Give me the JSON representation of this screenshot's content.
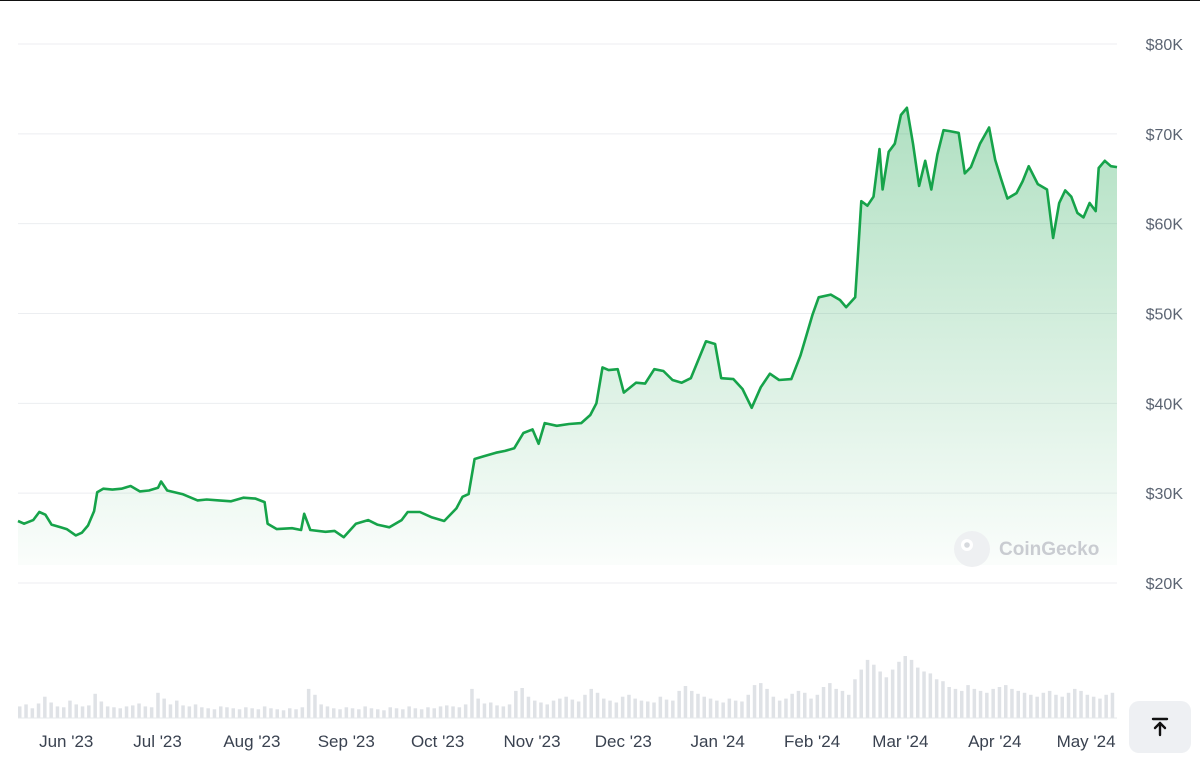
{
  "chart_data": {
    "type": "area",
    "title": "",
    "xlabel": "",
    "ylabel": "",
    "ylim": [
      20000,
      80000
    ],
    "y_ticks": [
      {
        "value": 80000,
        "label": "$80K"
      },
      {
        "value": 70000,
        "label": "$70K"
      },
      {
        "value": 60000,
        "label": "$60K"
      },
      {
        "value": 50000,
        "label": "$50K"
      },
      {
        "value": 40000,
        "label": "$40K"
      },
      {
        "value": 30000,
        "label": "$30K"
      },
      {
        "value": 20000,
        "label": "$20K"
      }
    ],
    "x_ticks": [
      {
        "date": "2023-06-01",
        "label": "Jun '23"
      },
      {
        "date": "2023-07-01",
        "label": "Jul '23"
      },
      {
        "date": "2023-08-01",
        "label": "Aug '23"
      },
      {
        "date": "2023-09-01",
        "label": "Sep '23"
      },
      {
        "date": "2023-10-01",
        "label": "Oct '23"
      },
      {
        "date": "2023-11-01",
        "label": "Nov '23"
      },
      {
        "date": "2023-12-01",
        "label": "Dec '23"
      },
      {
        "date": "2024-01-01",
        "label": "Jan '24"
      },
      {
        "date": "2024-02-01",
        "label": "Feb '24"
      },
      {
        "date": "2024-03-01",
        "label": "Mar '24"
      },
      {
        "date": "2024-04-01",
        "label": "Apr '24"
      },
      {
        "date": "2024-05-01",
        "label": "May '24"
      }
    ],
    "x_range": [
      "2023-05-27",
      "2024-05-22"
    ],
    "series": [
      {
        "color": "#16a34a",
        "points": [
          [
            "2023-05-27",
            26900
          ],
          [
            "2023-05-29",
            26600
          ],
          [
            "2023-06-01",
            27000
          ],
          [
            "2023-06-03",
            27900
          ],
          [
            "2023-06-05",
            27600
          ],
          [
            "2023-06-07",
            26500
          ],
          [
            "2023-06-10",
            26200
          ],
          [
            "2023-06-12",
            26000
          ],
          [
            "2023-06-15",
            25300
          ],
          [
            "2023-06-17",
            25600
          ],
          [
            "2023-06-19",
            26400
          ],
          [
            "2023-06-21",
            28000
          ],
          [
            "2023-06-22",
            30100
          ],
          [
            "2023-06-24",
            30500
          ],
          [
            "2023-06-27",
            30400
          ],
          [
            "2023-06-30",
            30500
          ],
          [
            "2023-07-03",
            30800
          ],
          [
            "2023-07-06",
            30200
          ],
          [
            "2023-07-09",
            30300
          ],
          [
            "2023-07-12",
            30600
          ],
          [
            "2023-07-13",
            31300
          ],
          [
            "2023-07-15",
            30300
          ],
          [
            "2023-07-20",
            29900
          ],
          [
            "2023-07-25",
            29200
          ],
          [
            "2023-07-28",
            29300
          ],
          [
            "2023-08-01",
            29200
          ],
          [
            "2023-08-05",
            29100
          ],
          [
            "2023-08-09",
            29500
          ],
          [
            "2023-08-13",
            29400
          ],
          [
            "2023-08-16",
            29000
          ],
          [
            "2023-08-17",
            26600
          ],
          [
            "2023-08-20",
            26000
          ],
          [
            "2023-08-25",
            26100
          ],
          [
            "2023-08-28",
            25900
          ],
          [
            "2023-08-29",
            27700
          ],
          [
            "2023-08-31",
            25900
          ],
          [
            "2023-09-05",
            25700
          ],
          [
            "2023-09-08",
            25800
          ],
          [
            "2023-09-11",
            25100
          ],
          [
            "2023-09-15",
            26600
          ],
          [
            "2023-09-19",
            27000
          ],
          [
            "2023-09-22",
            26500
          ],
          [
            "2023-09-26",
            26200
          ],
          [
            "2023-09-30",
            27000
          ],
          [
            "2023-10-02",
            27900
          ],
          [
            "2023-10-06",
            27900
          ],
          [
            "2023-10-10",
            27300
          ],
          [
            "2023-10-14",
            26900
          ],
          [
            "2023-10-18",
            28300
          ],
          [
            "2023-10-20",
            29600
          ],
          [
            "2023-10-22",
            29900
          ],
          [
            "2023-10-24",
            33800
          ],
          [
            "2023-10-27",
            34100
          ],
          [
            "2023-10-31",
            34500
          ],
          [
            "2023-11-03",
            34700
          ],
          [
            "2023-11-06",
            35000
          ],
          [
            "2023-11-09",
            36700
          ],
          [
            "2023-11-12",
            37100
          ],
          [
            "2023-11-14",
            35500
          ],
          [
            "2023-11-16",
            37800
          ],
          [
            "2023-11-20",
            37500
          ],
          [
            "2023-11-24",
            37700
          ],
          [
            "2023-11-28",
            37800
          ],
          [
            "2023-12-01",
            38700
          ],
          [
            "2023-12-03",
            40000
          ],
          [
            "2023-12-05",
            44000
          ],
          [
            "2023-12-07",
            43700
          ],
          [
            "2023-12-10",
            43800
          ],
          [
            "2023-12-12",
            41200
          ],
          [
            "2023-12-16",
            42300
          ],
          [
            "2023-12-19",
            42200
          ],
          [
            "2023-12-22",
            43800
          ],
          [
            "2023-12-25",
            43600
          ],
          [
            "2023-12-28",
            42600
          ],
          [
            "2023-12-31",
            42300
          ],
          [
            "2024-01-03",
            42800
          ],
          [
            "2024-01-08",
            46900
          ],
          [
            "2024-01-11",
            46600
          ],
          [
            "2024-01-13",
            42800
          ],
          [
            "2024-01-17",
            42700
          ],
          [
            "2024-01-20",
            41600
          ],
          [
            "2024-01-23",
            39500
          ],
          [
            "2024-01-26",
            41800
          ],
          [
            "2024-01-29",
            43300
          ],
          [
            "2024-02-01",
            42600
          ],
          [
            "2024-02-05",
            42700
          ],
          [
            "2024-02-08",
            45300
          ],
          [
            "2024-02-10",
            47600
          ],
          [
            "2024-02-12",
            49900
          ],
          [
            "2024-02-14",
            51800
          ],
          [
            "2024-02-18",
            52100
          ],
          [
            "2024-02-21",
            51500
          ],
          [
            "2024-02-23",
            50700
          ],
          [
            "2024-02-26",
            51800
          ],
          [
            "2024-02-27",
            57000
          ],
          [
            "2024-02-28",
            62500
          ],
          [
            "2024-03-01",
            62000
          ],
          [
            "2024-03-03",
            63000
          ],
          [
            "2024-03-05",
            68300
          ],
          [
            "2024-03-06",
            63800
          ],
          [
            "2024-03-08",
            68000
          ],
          [
            "2024-03-10",
            68900
          ],
          [
            "2024-03-12",
            72100
          ],
          [
            "2024-03-14",
            72900
          ],
          [
            "2024-03-16",
            68900
          ],
          [
            "2024-03-18",
            64200
          ],
          [
            "2024-03-20",
            67000
          ],
          [
            "2024-03-22",
            63800
          ],
          [
            "2024-03-24",
            67700
          ],
          [
            "2024-03-26",
            70400
          ],
          [
            "2024-03-28",
            70300
          ],
          [
            "2024-03-31",
            70100
          ],
          [
            "2024-04-02",
            65600
          ],
          [
            "2024-04-04",
            66300
          ],
          [
            "2024-04-07",
            68900
          ],
          [
            "2024-04-09",
            70100
          ],
          [
            "2024-04-10",
            70700
          ],
          [
            "2024-04-12",
            67100
          ],
          [
            "2024-04-14",
            64900
          ],
          [
            "2024-04-16",
            62800
          ],
          [
            "2024-04-19",
            63400
          ],
          [
            "2024-04-21",
            64700
          ],
          [
            "2024-04-23",
            66400
          ],
          [
            "2024-04-26",
            64400
          ],
          [
            "2024-04-29",
            63800
          ],
          [
            "2024-05-01",
            58400
          ],
          [
            "2024-05-03",
            62300
          ],
          [
            "2024-05-05",
            63700
          ],
          [
            "2024-05-07",
            63000
          ],
          [
            "2024-05-09",
            61200
          ],
          [
            "2024-05-11",
            60700
          ],
          [
            "2024-05-13",
            62300
          ],
          [
            "2024-05-15",
            61400
          ],
          [
            "2024-05-16",
            66200
          ],
          [
            "2024-05-18",
            67000
          ],
          [
            "2024-05-20",
            66400
          ],
          [
            "2024-05-22",
            66300
          ]
        ]
      }
    ],
    "volume_bars": [
      12,
      14,
      10,
      15,
      22,
      16,
      12,
      11,
      18,
      14,
      12,
      13,
      25,
      17,
      12,
      11,
      10,
      12,
      13,
      15,
      12,
      11,
      26,
      20,
      14,
      18,
      13,
      12,
      14,
      11,
      10,
      9,
      12,
      11,
      10,
      9,
      11,
      10,
      9,
      12,
      10,
      9,
      8,
      10,
      9,
      11,
      30,
      24,
      14,
      12,
      10,
      9,
      11,
      10,
      9,
      12,
      10,
      9,
      8,
      11,
      10,
      9,
      12,
      10,
      9,
      11,
      10,
      12,
      13,
      12,
      11,
      14,
      30,
      20,
      15,
      16,
      13,
      12,
      14,
      28,
      31,
      22,
      18,
      16,
      14,
      18,
      20,
      22,
      19,
      17,
      24,
      30,
      26,
      20,
      18,
      16,
      22,
      24,
      20,
      18,
      17,
      16,
      22,
      19,
      18,
      28,
      33,
      28,
      25,
      22,
      20,
      18,
      16,
      20,
      18,
      17,
      24,
      34,
      36,
      30,
      22,
      18,
      20,
      25,
      28,
      26,
      20,
      24,
      32,
      36,
      30,
      28,
      24,
      40,
      50,
      60,
      55,
      48,
      42,
      50,
      58,
      64,
      60,
      52,
      48,
      46,
      40,
      38,
      32,
      30,
      28,
      34,
      30,
      28,
      26,
      30,
      32,
      34,
      30,
      28,
      26,
      24,
      22,
      26,
      28,
      24,
      22,
      26,
      30,
      28,
      24,
      22,
      20,
      24,
      26
    ],
    "watermark": "CoinGecko",
    "legend": "none",
    "grid": true
  },
  "controls": {
    "scroll_top_icon": "arrow-up-to-line-icon"
  }
}
